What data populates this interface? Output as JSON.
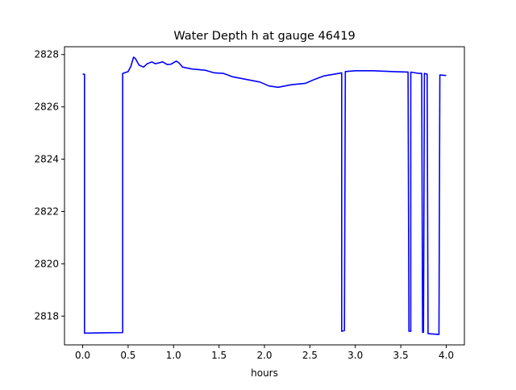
{
  "chart_data": {
    "type": "line",
    "title": "Water Depth h at gauge 46419",
    "xlabel": "hours",
    "ylabel": "",
    "xlim": [
      -0.2,
      4.2
    ],
    "ylim": [
      2816.9,
      2828.3
    ],
    "xticks": [
      0.0,
      0.5,
      1.0,
      1.5,
      2.0,
      2.5,
      3.0,
      3.5,
      4.0
    ],
    "xtick_labels": [
      "0.0",
      "0.5",
      "1.0",
      "1.5",
      "2.0",
      "2.5",
      "3.0",
      "3.5",
      "4.0"
    ],
    "yticks": [
      2818,
      2820,
      2822,
      2824,
      2826,
      2828
    ],
    "ytick_labels": [
      "2818",
      "2820",
      "2822",
      "2824",
      "2826",
      "2828"
    ],
    "grid": false,
    "line_color": "#0000ff",
    "series": [
      {
        "segments": [
          [
            [
              0.0,
              2827.25
            ],
            [
              0.02,
              2827.25
            ],
            [
              0.02,
              2817.35
            ],
            [
              0.44,
              2817.37
            ],
            [
              0.44,
              2827.28
            ],
            [
              0.5,
              2827.35
            ],
            [
              0.53,
              2827.55
            ],
            [
              0.56,
              2827.9
            ],
            [
              0.58,
              2827.85
            ],
            [
              0.62,
              2827.6
            ],
            [
              0.67,
              2827.52
            ],
            [
              0.71,
              2827.65
            ],
            [
              0.76,
              2827.72
            ],
            [
              0.8,
              2827.65
            ],
            [
              0.88,
              2827.72
            ],
            [
              0.93,
              2827.62
            ],
            [
              0.97,
              2827.63
            ],
            [
              1.03,
              2827.75
            ],
            [
              1.06,
              2827.68
            ],
            [
              1.1,
              2827.52
            ],
            [
              1.2,
              2827.45
            ],
            [
              1.35,
              2827.4
            ],
            [
              1.45,
              2827.3
            ],
            [
              1.55,
              2827.28
            ],
            [
              1.65,
              2827.15
            ],
            [
              1.8,
              2827.05
            ],
            [
              1.95,
              2826.95
            ],
            [
              2.05,
              2826.8
            ],
            [
              2.15,
              2826.75
            ],
            [
              2.3,
              2826.85
            ],
            [
              2.45,
              2826.9
            ],
            [
              2.55,
              2827.05
            ],
            [
              2.65,
              2827.18
            ],
            [
              2.85,
              2827.3
            ],
            [
              2.85,
              2817.42
            ],
            [
              2.88,
              2817.45
            ],
            [
              2.89,
              2827.35
            ],
            [
              3.0,
              2827.38
            ],
            [
              3.2,
              2827.38
            ],
            [
              3.4,
              2827.35
            ],
            [
              3.58,
              2827.33
            ],
            [
              3.59,
              2817.42
            ],
            [
              3.61,
              2817.42
            ],
            [
              3.61,
              2827.33
            ],
            [
              3.7,
              2827.28
            ],
            [
              3.73,
              2827.28
            ],
            [
              3.74,
              2817.38
            ],
            [
              3.75,
              2817.38
            ],
            [
              3.76,
              2827.28
            ],
            [
              3.79,
              2827.25
            ],
            [
              3.8,
              2817.33
            ],
            [
              3.92,
              2817.3
            ],
            [
              3.93,
              2827.22
            ],
            [
              4.0,
              2827.2
            ]
          ]
        ]
      }
    ]
  }
}
